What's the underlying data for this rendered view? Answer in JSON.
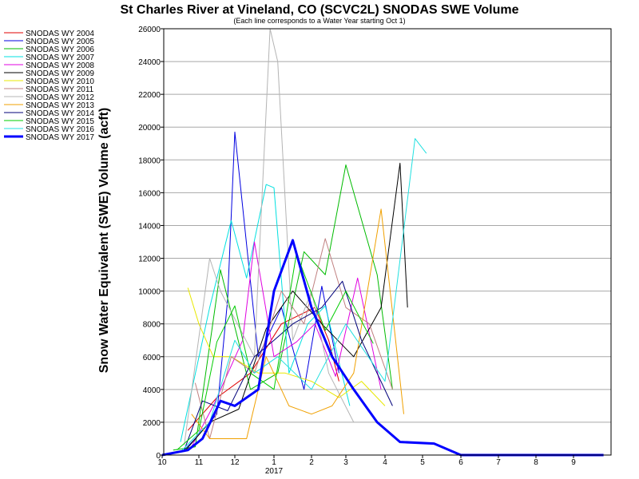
{
  "chart_data": {
    "type": "line",
    "title": "St Charles River at Vineland, CO (SCVC2L) SNODAS SWE Volume",
    "subtitle": "(Each line corresponds to a Water Year starting Oct 1)",
    "xlabel": "",
    "ylabel": "Snow Water Equivalent (SWE) Volume (acft)",
    "x_tick_labels": [
      "10",
      "11",
      "12",
      "1",
      "2",
      "3",
      "4",
      "5",
      "6",
      "7",
      "8",
      "9"
    ],
    "x_sub_label": "2017",
    "ylim": [
      0,
      26000
    ],
    "y_ticks": [
      0,
      2000,
      4000,
      6000,
      8000,
      10000,
      12000,
      14000,
      16000,
      18000,
      20000,
      22000,
      24000,
      26000
    ],
    "grid": "horizontal",
    "legend_position": "left",
    "series": [
      {
        "name": "SNODAS WY 2004",
        "color": "#e00000",
        "values": [
          [
            0.7,
            1500
          ],
          [
            1.5,
            3500
          ],
          [
            2.4,
            5000
          ],
          [
            3.2,
            8000
          ],
          [
            4.1,
            9000
          ],
          [
            4.5,
            7000
          ],
          [
            4.8,
            4500
          ]
        ]
      },
      {
        "name": "SNODAS WY 2005",
        "color": "#0000e0",
        "values": [
          [
            0.6,
            300
          ],
          [
            0.9,
            1000
          ],
          [
            1.5,
            2500
          ],
          [
            1.8,
            9500
          ],
          [
            2.0,
            19700
          ],
          [
            2.6,
            6000
          ],
          [
            3.2,
            9000
          ],
          [
            3.8,
            4000
          ],
          [
            4.3,
            10300
          ],
          [
            4.8,
            5000
          ]
        ]
      },
      {
        "name": "SNODAS WY 2006",
        "color": "#00bb00",
        "values": [
          [
            0.3,
            300
          ],
          [
            0.9,
            500
          ],
          [
            1.6,
            11300
          ],
          [
            2.4,
            4000
          ],
          [
            3.1,
            5000
          ],
          [
            3.8,
            12400
          ],
          [
            4.4,
            11000
          ],
          [
            5.0,
            17700
          ],
          [
            5.8,
            11000
          ],
          [
            6.2,
            4000
          ]
        ]
      },
      {
        "name": "SNODAS WY 2007",
        "color": "#00e0e0",
        "values": [
          [
            0.5,
            800
          ],
          [
            1.3,
            9000
          ],
          [
            1.9,
            14300
          ],
          [
            2.3,
            10800
          ],
          [
            2.8,
            16500
          ],
          [
            3.0,
            16300
          ],
          [
            3.4,
            5000
          ],
          [
            3.9,
            8000
          ],
          [
            4.4,
            9100
          ],
          [
            5.1,
            3000
          ]
        ]
      },
      {
        "name": "SNODAS WY 2008",
        "color": "#e000e0",
        "values": [
          [
            0.8,
            500
          ],
          [
            1.4,
            3000
          ],
          [
            2.2,
            7000
          ],
          [
            2.5,
            13000
          ],
          [
            3.0,
            6000
          ],
          [
            3.6,
            6900
          ],
          [
            4.1,
            8000
          ],
          [
            4.7,
            4800
          ],
          [
            5.3,
            10800
          ],
          [
            5.9,
            4000
          ]
        ]
      },
      {
        "name": "SNODAS WY 2009",
        "color": "#000000",
        "values": [
          [
            0.6,
            200
          ],
          [
            1.3,
            2000
          ],
          [
            2.1,
            2800
          ],
          [
            2.8,
            7700
          ],
          [
            3.5,
            10000
          ],
          [
            4.3,
            8000
          ],
          [
            5.2,
            6000
          ],
          [
            5.9,
            9000
          ],
          [
            6.4,
            17800
          ],
          [
            6.6,
            9000
          ]
        ]
      },
      {
        "name": "SNODAS WY 2010",
        "color": "#e8e800",
        "values": [
          [
            0.7,
            10200
          ],
          [
            1.0,
            8000
          ],
          [
            1.4,
            6000
          ],
          [
            1.9,
            6000
          ],
          [
            2.6,
            5000
          ],
          [
            3.3,
            5000
          ],
          [
            4.0,
            4500
          ],
          [
            4.8,
            3500
          ],
          [
            5.4,
            4500
          ],
          [
            6.0,
            3000
          ]
        ]
      },
      {
        "name": "SNODAS WY 2011",
        "color": "#c08080",
        "values": [
          [
            0.9,
            4400
          ],
          [
            1.3,
            1000
          ],
          [
            1.9,
            6000
          ],
          [
            2.5,
            5000
          ],
          [
            3.2,
            10000
          ],
          [
            3.8,
            8000
          ],
          [
            4.4,
            13200
          ],
          [
            5.0,
            9000
          ],
          [
            5.6,
            8000
          ],
          [
            6.2,
            4000
          ]
        ]
      },
      {
        "name": "SNODAS WY 2012",
        "color": "#b4b4b4",
        "values": [
          [
            0.6,
            600
          ],
          [
            1.3,
            12000
          ],
          [
            1.6,
            10000
          ],
          [
            2.5,
            6000
          ],
          [
            2.9,
            26000
          ],
          [
            3.1,
            24000
          ],
          [
            3.5,
            7000
          ],
          [
            4.0,
            10000
          ],
          [
            4.5,
            5000
          ],
          [
            5.2,
            2000
          ]
        ]
      },
      {
        "name": "SNODAS WY 2013",
        "color": "#f0a000",
        "values": [
          [
            0.8,
            2500
          ],
          [
            1.3,
            1000
          ],
          [
            2.3,
            1000
          ],
          [
            2.8,
            6000
          ],
          [
            3.4,
            3000
          ],
          [
            4.0,
            2500
          ],
          [
            4.6,
            3000
          ],
          [
            5.2,
            5000
          ],
          [
            5.9,
            15000
          ],
          [
            6.5,
            2500
          ]
        ]
      },
      {
        "name": "SNODAS WY 2014",
        "color": "#00007a",
        "values": [
          [
            0.6,
            300
          ],
          [
            1.1,
            3300
          ],
          [
            1.8,
            2700
          ],
          [
            2.5,
            6000
          ],
          [
            3.0,
            7000
          ],
          [
            3.5,
            8000
          ],
          [
            4.3,
            9000
          ],
          [
            4.9,
            10600
          ],
          [
            5.4,
            7000
          ],
          [
            6.2,
            3000
          ]
        ]
      },
      {
        "name": "SNODAS WY 2015",
        "color": "#00cc00",
        "values": [
          [
            0.4,
            300
          ],
          [
            1.0,
            1500
          ],
          [
            1.5,
            6900
          ],
          [
            2.0,
            9100
          ],
          [
            2.4,
            5000
          ],
          [
            3.0,
            4000
          ],
          [
            3.6,
            12300
          ],
          [
            4.4,
            7600
          ],
          [
            5.0,
            10000
          ],
          [
            5.7,
            6800
          ]
        ]
      },
      {
        "name": "SNODAS WY 2016",
        "color": "#20e0e0",
        "values": [
          [
            0.5,
            200
          ],
          [
            1.3,
            2000
          ],
          [
            2.0,
            7000
          ],
          [
            2.5,
            5000
          ],
          [
            3.1,
            6000
          ],
          [
            4.0,
            4000
          ],
          [
            5.0,
            8000
          ],
          [
            6.0,
            4500
          ],
          [
            6.8,
            19300
          ],
          [
            7.1,
            18400
          ]
        ]
      },
      {
        "name": "SNODAS WY 2017",
        "color": "#0000ff",
        "bold": true,
        "values": [
          [
            0.0,
            0
          ],
          [
            0.7,
            300
          ],
          [
            1.1,
            1000
          ],
          [
            1.6,
            3300
          ],
          [
            2.0,
            3000
          ],
          [
            2.6,
            4000
          ],
          [
            3.0,
            10000
          ],
          [
            3.5,
            13100
          ],
          [
            4.0,
            9000
          ],
          [
            4.6,
            6000
          ],
          [
            5.2,
            4000
          ],
          [
            5.8,
            2000
          ],
          [
            6.4,
            800
          ],
          [
            7.3,
            700
          ],
          [
            8.0,
            0
          ],
          [
            11.8,
            0
          ]
        ]
      }
    ]
  }
}
